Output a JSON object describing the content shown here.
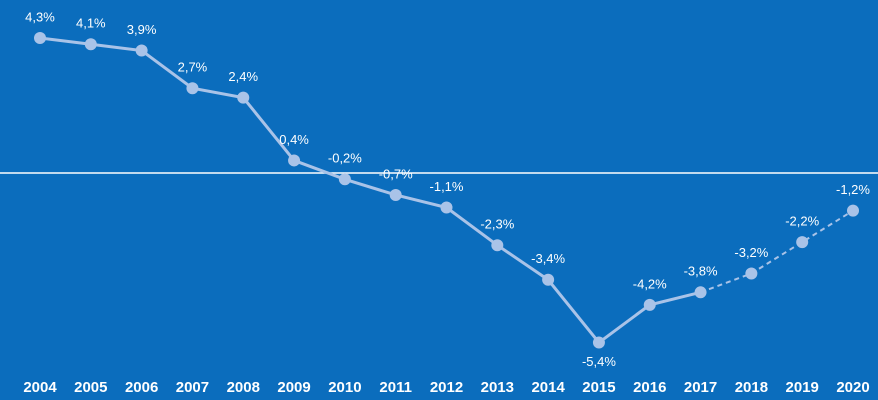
{
  "chart_data": {
    "type": "line",
    "categories": [
      "2004",
      "2005",
      "2006",
      "2007",
      "2008",
      "2009",
      "2010",
      "2011",
      "2012",
      "2013",
      "2014",
      "2015",
      "2016",
      "2017",
      "2018",
      "2019",
      "2020"
    ],
    "series": [
      {
        "color": "#a9c3e8",
        "style": "solid",
        "values": [
          4.3,
          4.1,
          3.9,
          2.7,
          2.4,
          0.4,
          -0.2,
          -0.7,
          -1.1,
          -2.3,
          -3.4,
          -5.4,
          -4.2,
          -3.8,
          null,
          null,
          null
        ],
        "value_labels": [
          "4,3%",
          "4,1%",
          "3,9%",
          "2,7%",
          "2,4%",
          "0,4%",
          "-0,2%",
          "-0,7%",
          "-1,1%",
          "-2,3%",
          "-3,4%",
          "-5,4%",
          "-4,2%",
          "-3,8%",
          null,
          null,
          null
        ]
      },
      {
        "color": "#a9c3e8",
        "style": "dashed",
        "values": [
          null,
          null,
          null,
          null,
          null,
          null,
          null,
          null,
          null,
          null,
          null,
          null,
          null,
          null,
          -3.2,
          -2.2,
          -1.2
        ],
        "value_labels": [
          null,
          null,
          null,
          null,
          null,
          null,
          null,
          null,
          null,
          null,
          null,
          null,
          null,
          null,
          "-3,2%",
          "-2,2%",
          "-1,2%"
        ]
      }
    ],
    "ylim": [
      -7.23,
      5.51
    ],
    "hline": 0,
    "background": "#0b6dbd"
  }
}
